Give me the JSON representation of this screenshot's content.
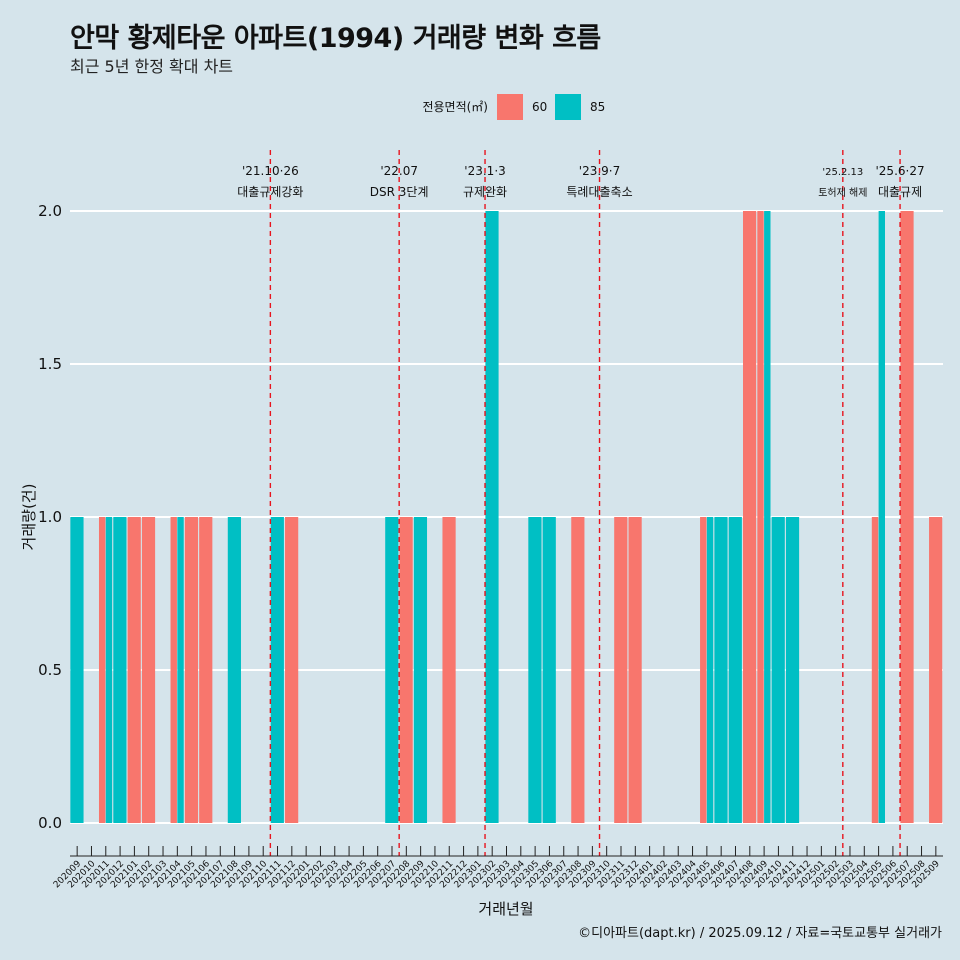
{
  "header": {
    "title": "안막 황제타운 아파트(1994) 거래량 변화 흐름",
    "subtitle": "최근 5년 한정 확대 차트"
  },
  "caption": "©디아파트(dapt.kr) / 2025.09.12 / 자료=국토교통부 실거래가",
  "chart_data": {
    "type": "bar",
    "xlabel": "거래년월",
    "ylabel": "거래량(건)",
    "ylim": [
      0,
      2
    ],
    "yticks": [
      "0.0",
      "0.5",
      "1.0",
      "1.5",
      "2.0"
    ],
    "legend": {
      "title": "전용면적(㎡)",
      "position": "top"
    },
    "categories": [
      "202009",
      "202010",
      "202011",
      "202012",
      "202101",
      "202102",
      "202103",
      "202104",
      "202105",
      "202106",
      "202107",
      "202108",
      "202109",
      "202110",
      "202111",
      "202112",
      "202201",
      "202202",
      "202203",
      "202204",
      "202205",
      "202206",
      "202207",
      "202208",
      "202209",
      "202210",
      "202211",
      "202212",
      "202301",
      "202302",
      "202303",
      "202304",
      "202305",
      "202306",
      "202307",
      "202308",
      "202309",
      "202310",
      "202311",
      "202312",
      "202401",
      "202402",
      "202403",
      "202404",
      "202405",
      "202406",
      "202407",
      "202408",
      "202409",
      "202410",
      "202411",
      "202412",
      "202501",
      "202502",
      "202503",
      "202504",
      "202505",
      "202506",
      "202507",
      "202508",
      "202509"
    ],
    "series": [
      {
        "name": "60",
        "color": "#f8766d",
        "values": [
          0,
          0,
          1,
          0,
          1,
          1,
          0,
          1,
          1,
          1,
          0,
          0,
          0,
          0,
          0,
          1,
          0,
          0,
          0,
          0,
          0,
          0,
          0,
          1,
          0,
          0,
          1,
          0,
          0,
          0,
          0,
          0,
          0,
          0,
          0,
          1,
          0,
          0,
          1,
          1,
          0,
          0,
          0,
          0,
          1,
          0,
          0,
          2,
          2,
          0,
          0,
          0,
          0,
          0,
          0,
          0,
          1,
          0,
          2,
          0,
          1
        ]
      },
      {
        "name": "85",
        "color": "#00bfc4",
        "values": [
          1,
          0,
          1,
          1,
          0,
          0,
          0,
          1,
          0,
          0,
          0,
          1,
          0,
          0,
          1,
          0,
          0,
          0,
          0,
          0,
          0,
          0,
          1,
          0,
          1,
          0,
          0,
          0,
          0,
          2,
          0,
          0,
          1,
          1,
          0,
          0,
          0,
          0,
          0,
          0,
          0,
          0,
          0,
          0,
          1,
          1,
          1,
          0,
          2,
          1,
          1,
          0,
          0,
          0,
          0,
          0,
          2,
          0,
          0,
          0,
          0
        ]
      }
    ],
    "events": [
      {
        "after": "202110",
        "date": "'21.10·26",
        "label": "대출규제강화"
      },
      {
        "after": "202207",
        "date": "'22.07",
        "label": "DSR 3단계"
      },
      {
        "after": "202301",
        "date": "'23.1·3",
        "label": "규제완화"
      },
      {
        "after": "202309",
        "date": "'23.9·7",
        "label": "특례대출축소"
      },
      {
        "after": "202502",
        "date": "'25.2.13",
        "label": "토허제 해제"
      },
      {
        "after": "202506",
        "date": "'25.6·27",
        "label": "대출규제"
      }
    ]
  }
}
